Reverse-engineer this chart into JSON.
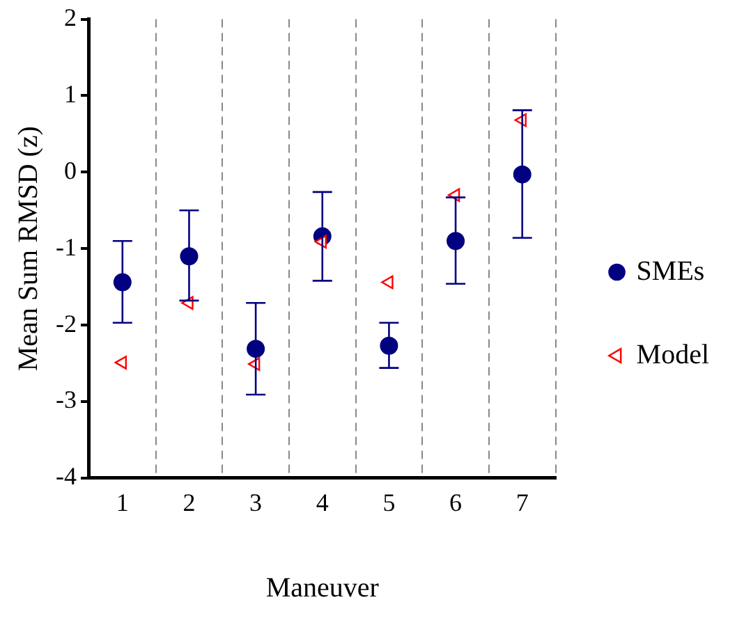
{
  "chart_data": {
    "type": "scatter",
    "xlabel": "Maneuver",
    "ylabel": "Mean Sum RMSD (z)",
    "categories": [
      "1",
      "2",
      "3",
      "4",
      "5",
      "6",
      "7"
    ],
    "series": [
      {
        "name": "SMEs",
        "color": "#000080",
        "marker": "circle",
        "values": [
          -1.44,
          -1.1,
          -2.31,
          -0.84,
          -2.27,
          -0.9,
          -0.03
        ],
        "errors": [
          [
            -1.97,
            -0.9
          ],
          [
            -1.68,
            -0.5
          ],
          [
            -2.91,
            -1.71
          ],
          [
            -1.42,
            -0.26
          ],
          [
            -2.56,
            -1.97
          ],
          [
            -1.46,
            -0.33
          ],
          [
            -0.86,
            0.81
          ]
        ]
      },
      {
        "name": "Model",
        "color": "#ff0000",
        "marker": "triangle",
        "values": [
          -2.49,
          -1.71,
          -2.51,
          -0.91,
          -1.44,
          -0.3,
          0.68
        ]
      }
    ],
    "ylim": [
      -4,
      2
    ],
    "yticks": [
      -4,
      -3,
      -2,
      -1,
      0,
      1,
      2
    ],
    "grid": "x",
    "legend": "right"
  }
}
